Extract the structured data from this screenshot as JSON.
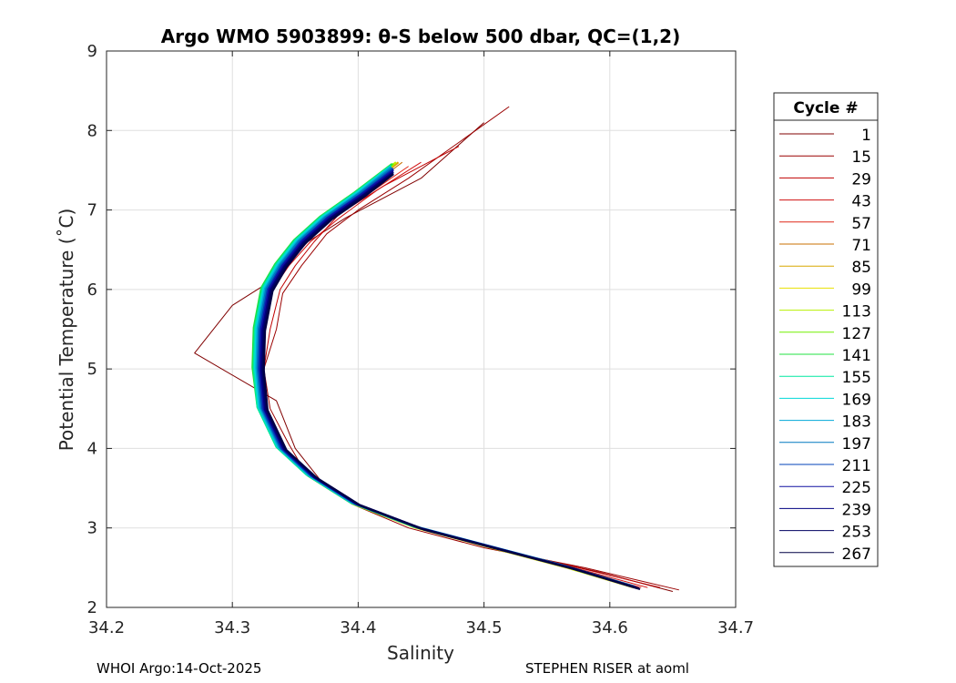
{
  "chart_data": {
    "type": "line",
    "title": "Argo WMO 5903899: θ-S below 500 dbar,  QC=(1,2)",
    "xlabel": "Salinity",
    "ylabel": "Potential Temperature (˚C)",
    "xlim": [
      34.2,
      34.7
    ],
    "ylim": [
      2,
      9
    ],
    "xticks": [
      "34.2",
      "34.3",
      "34.4",
      "34.5",
      "34.6",
      "34.7"
    ],
    "yticks": [
      "2",
      "3",
      "4",
      "5",
      "6",
      "7",
      "8",
      "9"
    ],
    "grid": true,
    "legend": {
      "title": "Cycle #",
      "placement": "outside-right",
      "entries": [
        {
          "label": "1",
          "color": "#800000"
        },
        {
          "label": "15",
          "color": "#9a0000"
        },
        {
          "label": "29",
          "color": "#c00000"
        },
        {
          "label": "43",
          "color": "#d01010"
        },
        {
          "label": "57",
          "color": "#e02818"
        },
        {
          "label": "71",
          "color": "#c87000"
        },
        {
          "label": "85",
          "color": "#d8a800"
        },
        {
          "label": "99",
          "color": "#e8e000"
        },
        {
          "label": "113",
          "color": "#b8f000"
        },
        {
          "label": "127",
          "color": "#70f000"
        },
        {
          "label": "141",
          "color": "#20e040"
        },
        {
          "label": "155",
          "color": "#00e8a0"
        },
        {
          "label": "169",
          "color": "#00d8d8"
        },
        {
          "label": "183",
          "color": "#00a8d8"
        },
        {
          "label": "197",
          "color": "#0078c0"
        },
        {
          "label": "211",
          "color": "#0040b8"
        },
        {
          "label": "225",
          "color": "#1010a0"
        },
        {
          "label": "239",
          "color": "#000080"
        },
        {
          "label": "253",
          "color": "#000060"
        },
        {
          "label": "267",
          "color": "#000045"
        }
      ]
    },
    "mean_profile": {
      "salinity": [
        34.62,
        34.57,
        34.51,
        34.45,
        34.4,
        34.365,
        34.34,
        34.325,
        34.32,
        34.32,
        34.325,
        34.335,
        34.35,
        34.37,
        34.395,
        34.42
      ],
      "theta": [
        2.25,
        2.5,
        2.75,
        3.0,
        3.3,
        3.65,
        4.0,
        4.5,
        5.0,
        5.5,
        6.0,
        6.3,
        6.6,
        6.9,
        7.2,
        7.55
      ]
    },
    "series": [
      {
        "name": "1",
        "color": "#800000",
        "salinity": [
          34.65,
          34.59,
          34.52,
          34.46,
          34.405,
          34.37,
          34.35,
          34.335,
          34.27,
          34.3,
          34.33,
          34.345,
          34.36,
          34.39,
          34.45,
          34.5
        ],
        "theta": [
          2.2,
          2.45,
          2.7,
          2.95,
          3.25,
          3.6,
          4.0,
          4.6,
          5.2,
          5.8,
          6.1,
          6.35,
          6.6,
          6.9,
          7.4,
          8.1
        ]
      },
      {
        "name": "15",
        "color": "#9a0000",
        "salinity": [
          34.655,
          34.58,
          34.5,
          34.44,
          34.395,
          34.36,
          34.345,
          34.33,
          34.325,
          34.335,
          34.34,
          34.355,
          34.375,
          34.4,
          34.44,
          34.52
        ],
        "theta": [
          2.22,
          2.5,
          2.75,
          3.0,
          3.3,
          3.65,
          4.05,
          4.5,
          5.0,
          5.5,
          5.95,
          6.3,
          6.7,
          7.0,
          7.4,
          8.3
        ]
      },
      {
        "name": "29",
        "color": "#c00000",
        "salinity": [
          34.64,
          34.575,
          34.505,
          34.45,
          34.4,
          34.362,
          34.34,
          34.328,
          34.325,
          34.33,
          34.338,
          34.35,
          34.365,
          34.385,
          34.42,
          34.48
        ],
        "theta": [
          2.25,
          2.5,
          2.75,
          3.0,
          3.3,
          3.65,
          4.0,
          4.5,
          5.0,
          5.5,
          6.0,
          6.3,
          6.6,
          6.95,
          7.3,
          7.8
        ]
      },
      {
        "name": "43",
        "color": "#d01010",
        "salinity": [
          34.63,
          34.572,
          34.508,
          34.448,
          34.398,
          34.362,
          34.338,
          34.325,
          34.322,
          34.325,
          34.332,
          34.345,
          34.362,
          34.385,
          34.415,
          34.45
        ],
        "theta": [
          2.25,
          2.5,
          2.75,
          3.0,
          3.3,
          3.65,
          4.0,
          4.5,
          5.0,
          5.5,
          6.0,
          6.3,
          6.6,
          6.9,
          7.25,
          7.6
        ]
      },
      {
        "name": "57",
        "color": "#e02818",
        "salinity": [
          34.625,
          34.57,
          34.51,
          34.45,
          34.4,
          34.365,
          34.34,
          34.326,
          34.322,
          34.323,
          34.33,
          34.342,
          34.358,
          34.38,
          34.408,
          34.44
        ],
        "theta": [
          2.25,
          2.5,
          2.75,
          3.0,
          3.3,
          3.65,
          4.0,
          4.5,
          5.0,
          5.5,
          6.0,
          6.3,
          6.6,
          6.9,
          7.2,
          7.55
        ]
      },
      {
        "name": "71",
        "color": "#c87000",
        "salinity": [
          34.622,
          34.568,
          34.508,
          34.448,
          34.398,
          34.363,
          34.339,
          34.324,
          34.32,
          34.321,
          34.327,
          34.338,
          34.354,
          34.375,
          34.402,
          34.435
        ],
        "theta": [
          2.25,
          2.5,
          2.75,
          3.0,
          3.3,
          3.65,
          4.0,
          4.5,
          5.0,
          5.5,
          6.0,
          6.3,
          6.6,
          6.9,
          7.2,
          7.6
        ]
      },
      {
        "name": "85",
        "color": "#d8a800",
        "salinity": [
          34.62,
          34.567,
          34.507,
          34.447,
          34.397,
          34.362,
          34.338,
          34.323,
          34.319,
          34.32,
          34.326,
          34.337,
          34.352,
          34.373,
          34.4,
          34.432
        ],
        "theta": [
          2.25,
          2.5,
          2.75,
          3.0,
          3.3,
          3.65,
          4.0,
          4.5,
          5.0,
          5.5,
          6.0,
          6.3,
          6.6,
          6.9,
          7.2,
          7.6
        ]
      },
      {
        "name": "99",
        "color": "#e8e000",
        "salinity": [
          34.619,
          34.566,
          34.506,
          34.446,
          34.396,
          34.361,
          34.337,
          34.322,
          34.318,
          34.319,
          34.325,
          34.336,
          34.351,
          34.372,
          34.399,
          34.43
        ],
        "theta": [
          2.25,
          2.5,
          2.75,
          3.0,
          3.3,
          3.65,
          4.0,
          4.5,
          5.0,
          5.5,
          6.0,
          6.3,
          6.6,
          6.9,
          7.2,
          7.6
        ]
      },
      {
        "name": "113",
        "color": "#b8f000",
        "salinity": [
          34.619,
          34.566,
          34.506,
          34.446,
          34.396,
          34.361,
          34.337,
          34.322,
          34.318,
          34.319,
          34.325,
          34.336,
          34.351,
          34.372,
          34.399,
          34.43
        ],
        "theta": [
          2.26,
          2.51,
          2.76,
          3.01,
          3.31,
          3.66,
          4.01,
          4.51,
          5.01,
          5.51,
          6.01,
          6.31,
          6.61,
          6.91,
          7.21,
          7.6
        ]
      },
      {
        "name": "127",
        "color": "#70f000",
        "salinity": [
          34.618,
          34.565,
          34.505,
          34.445,
          34.395,
          34.36,
          34.336,
          34.321,
          34.317,
          34.318,
          34.324,
          34.335,
          34.35,
          34.371,
          34.398,
          34.428
        ],
        "theta": [
          2.26,
          2.51,
          2.76,
          3.01,
          3.31,
          3.66,
          4.01,
          4.51,
          5.01,
          5.51,
          6.01,
          6.31,
          6.61,
          6.91,
          7.21,
          7.58
        ]
      },
      {
        "name": "141",
        "color": "#20e040",
        "salinity": [
          34.617,
          34.564,
          34.504,
          34.444,
          34.394,
          34.359,
          34.335,
          34.32,
          34.316,
          34.317,
          34.323,
          34.334,
          34.349,
          34.37,
          34.397,
          34.427
        ],
        "theta": [
          2.27,
          2.52,
          2.77,
          3.02,
          3.32,
          3.67,
          4.02,
          4.52,
          5.02,
          5.52,
          6.02,
          6.32,
          6.62,
          6.92,
          7.22,
          7.58
        ]
      },
      {
        "name": "155",
        "color": "#00e8a0",
        "salinity": [
          34.617,
          34.564,
          34.504,
          34.444,
          34.394,
          34.359,
          34.335,
          34.32,
          34.317,
          34.318,
          34.324,
          34.335,
          34.35,
          34.371,
          34.398,
          34.426
        ],
        "theta": [
          2.27,
          2.52,
          2.77,
          3.02,
          3.32,
          3.67,
          4.02,
          4.52,
          5.02,
          5.52,
          6.02,
          6.32,
          6.62,
          6.92,
          7.22,
          7.56
        ]
      },
      {
        "name": "169",
        "color": "#00d8d8",
        "salinity": [
          34.618,
          34.565,
          34.505,
          34.445,
          34.395,
          34.36,
          34.336,
          34.321,
          34.318,
          34.319,
          34.325,
          34.336,
          34.351,
          34.372,
          34.399,
          34.426
        ],
        "theta": [
          2.27,
          2.52,
          2.77,
          3.02,
          3.32,
          3.67,
          4.02,
          4.52,
          5.02,
          5.52,
          6.02,
          6.32,
          6.62,
          6.92,
          7.22,
          7.55
        ]
      },
      {
        "name": "183",
        "color": "#00a8d8",
        "salinity": [
          34.619,
          34.566,
          34.506,
          34.446,
          34.396,
          34.361,
          34.337,
          34.322,
          34.319,
          34.32,
          34.326,
          34.337,
          34.352,
          34.373,
          34.4,
          34.426
        ],
        "theta": [
          2.26,
          2.51,
          2.76,
          3.01,
          3.31,
          3.66,
          4.01,
          4.51,
          5.01,
          5.51,
          6.01,
          6.31,
          6.61,
          6.91,
          7.21,
          7.54
        ]
      },
      {
        "name": "197",
        "color": "#0078c0",
        "salinity": [
          34.62,
          34.567,
          34.507,
          34.447,
          34.397,
          34.362,
          34.338,
          34.323,
          34.32,
          34.321,
          34.327,
          34.338,
          34.353,
          34.374,
          34.401,
          34.427
        ],
        "theta": [
          2.26,
          2.51,
          2.76,
          3.01,
          3.31,
          3.66,
          4.01,
          4.51,
          5.01,
          5.51,
          6.01,
          6.31,
          6.61,
          6.91,
          7.21,
          7.53
        ]
      },
      {
        "name": "211",
        "color": "#0040b8",
        "salinity": [
          34.62,
          34.568,
          34.508,
          34.448,
          34.398,
          34.363,
          34.339,
          34.324,
          34.321,
          34.322,
          34.328,
          34.339,
          34.354,
          34.375,
          34.402,
          34.428
        ],
        "theta": [
          2.25,
          2.5,
          2.75,
          3.0,
          3.3,
          3.65,
          4.0,
          4.5,
          5.0,
          5.5,
          6.0,
          6.3,
          6.6,
          6.9,
          7.2,
          7.52
        ]
      },
      {
        "name": "225",
        "color": "#1010a0",
        "salinity": [
          34.621,
          34.569,
          34.509,
          34.449,
          34.399,
          34.364,
          34.34,
          34.325,
          34.322,
          34.323,
          34.329,
          34.34,
          34.355,
          34.376,
          34.403,
          34.428
        ],
        "theta": [
          2.25,
          2.5,
          2.75,
          3.0,
          3.3,
          3.65,
          4.0,
          4.5,
          5.0,
          5.5,
          6.0,
          6.3,
          6.6,
          6.9,
          7.2,
          7.5
        ]
      },
      {
        "name": "239",
        "color": "#000080",
        "salinity": [
          34.622,
          34.57,
          34.51,
          34.45,
          34.4,
          34.365,
          34.341,
          34.326,
          34.323,
          34.324,
          34.33,
          34.341,
          34.356,
          34.377,
          34.404,
          34.428
        ],
        "theta": [
          2.24,
          2.49,
          2.74,
          2.99,
          3.29,
          3.64,
          3.99,
          4.49,
          4.99,
          5.49,
          5.99,
          6.29,
          6.59,
          6.89,
          7.19,
          7.48
        ]
      },
      {
        "name": "253",
        "color": "#000060",
        "salinity": [
          34.623,
          34.571,
          34.511,
          34.451,
          34.401,
          34.366,
          34.342,
          34.327,
          34.324,
          34.325,
          34.331,
          34.342,
          34.357,
          34.378,
          34.405,
          34.428
        ],
        "theta": [
          2.24,
          2.49,
          2.74,
          2.99,
          3.29,
          3.64,
          3.99,
          4.49,
          4.99,
          5.49,
          5.99,
          6.29,
          6.59,
          6.89,
          7.19,
          7.46
        ]
      },
      {
        "name": "267",
        "color": "#000045",
        "salinity": [
          34.624,
          34.572,
          34.512,
          34.452,
          34.402,
          34.367,
          34.343,
          34.328,
          34.325,
          34.326,
          34.332,
          34.343,
          34.358,
          34.379,
          34.406,
          34.428
        ],
        "theta": [
          2.23,
          2.48,
          2.73,
          2.98,
          3.28,
          3.63,
          3.98,
          4.48,
          4.98,
          5.48,
          5.98,
          6.28,
          6.58,
          6.88,
          7.18,
          7.45
        ]
      }
    ]
  },
  "footer": {
    "left": "WHOI Argo:14-Oct-2025",
    "right": "STEPHEN RISER at aoml"
  }
}
